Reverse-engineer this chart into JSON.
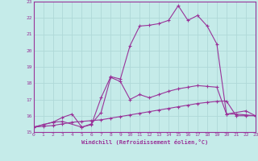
{
  "xlabel": "Windchill (Refroidissement éolien,°C)",
  "xlim": [
    0,
    23
  ],
  "ylim": [
    15,
    23
  ],
  "yticks": [
    15,
    16,
    17,
    18,
    19,
    20,
    21,
    22,
    23
  ],
  "xticks": [
    0,
    1,
    2,
    3,
    4,
    5,
    6,
    7,
    8,
    9,
    10,
    11,
    12,
    13,
    14,
    15,
    16,
    17,
    18,
    19,
    20,
    21,
    22,
    23
  ],
  "bg_color": "#c5ebe9",
  "grid_color": "#afd8d8",
  "line_color": "#993399",
  "lines": [
    {
      "x": [
        0,
        1,
        2,
        3,
        4,
        5,
        6,
        7,
        8,
        9,
        10,
        11,
        12,
        13,
        14,
        15,
        16,
        17,
        18,
        19,
        20,
        21,
        22,
        23
      ],
      "y": [
        15.3,
        15.35,
        15.4,
        15.5,
        15.6,
        15.65,
        15.7,
        15.75,
        15.85,
        15.95,
        16.05,
        16.15,
        16.25,
        16.35,
        16.45,
        16.55,
        16.65,
        16.75,
        16.82,
        16.88,
        16.9,
        16.0,
        16.0,
        16.0
      ]
    },
    {
      "x": [
        0,
        1,
        2,
        3,
        4,
        5,
        6,
        7,
        8,
        9,
        10,
        11,
        12,
        13,
        14,
        15,
        16,
        17,
        18,
        19,
        20,
        21,
        22,
        23
      ],
      "y": [
        15.3,
        15.45,
        15.6,
        15.9,
        16.1,
        15.3,
        15.45,
        17.1,
        18.4,
        18.25,
        20.3,
        21.5,
        21.55,
        21.65,
        21.85,
        22.75,
        21.85,
        22.15,
        21.5,
        20.4,
        16.1,
        16.1,
        16.05,
        16.0
      ]
    },
    {
      "x": [
        0,
        2,
        3,
        5,
        6,
        7,
        8,
        9,
        10,
        11,
        12,
        13,
        14,
        15,
        16,
        17,
        18,
        19,
        20,
        22,
        23
      ],
      "y": [
        15.3,
        15.6,
        15.65,
        15.3,
        15.5,
        16.2,
        18.35,
        18.1,
        17.0,
        17.3,
        17.1,
        17.3,
        17.5,
        17.65,
        17.75,
        17.85,
        17.8,
        17.75,
        16.1,
        16.3,
        16.0
      ]
    }
  ]
}
